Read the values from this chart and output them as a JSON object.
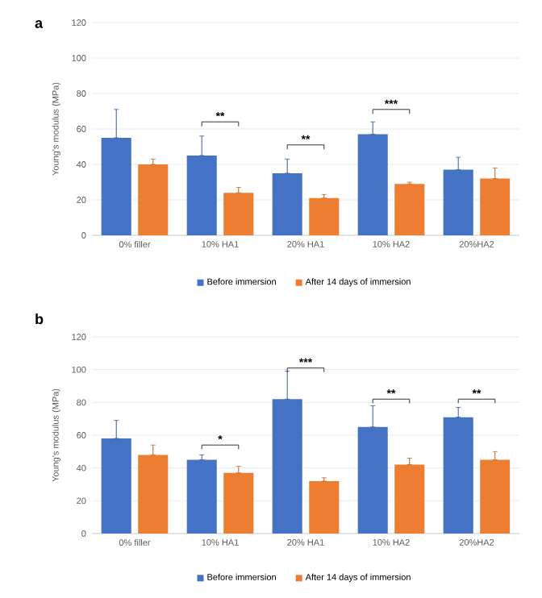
{
  "chart_data": [
    {
      "type": "bar",
      "title": "a",
      "ylabel": "Young's modulus (MPa)",
      "categories": [
        "0% filler",
        "10% HA1",
        "20% HA1",
        "10% HA2",
        "20%HA2"
      ],
      "series": [
        {
          "name": "Before immersion",
          "color": "#4472c4",
          "values": [
            55,
            45,
            35,
            57,
            37
          ],
          "errors": [
            [
              55,
              71
            ],
            [
              45,
              56
            ],
            [
              35,
              43
            ],
            [
              57,
              64
            ],
            [
              37,
              44
            ]
          ]
        },
        {
          "name": "After 14 days of immersion",
          "color": "#ed7d31",
          "values": [
            40,
            24,
            21,
            29,
            32
          ],
          "errors": [
            [
              40,
              43
            ],
            [
              24,
              27
            ],
            [
              21,
              23
            ],
            [
              29,
              30
            ],
            [
              32,
              38
            ]
          ]
        }
      ],
      "annotations": [
        "**",
        "**",
        "***"
      ],
      "ylim": [
        0,
        120
      ],
      "yticks": [
        0,
        20,
        40,
        60,
        80,
        100,
        120
      ],
      "grid": "y",
      "legend": "bottom"
    },
    {
      "type": "bar",
      "title": "b",
      "ylabel": "Young's modulus (MPa)",
      "categories": [
        "0% filler",
        "10% HA1",
        "20% HA1",
        "10% HA2",
        "20%HA2"
      ],
      "series": [
        {
          "name": "Before immersion",
          "color": "#4472c4",
          "values": [
            58,
            45,
            82,
            65,
            71
          ],
          "errors": [
            [
              58,
              69
            ],
            [
              45,
              48
            ],
            [
              82,
              99
            ],
            [
              65,
              78
            ],
            [
              71,
              77
            ]
          ]
        },
        {
          "name": "After 14 days of immersion",
          "color": "#ed7d31",
          "values": [
            48,
            37,
            32,
            42,
            45
          ],
          "errors": [
            [
              48,
              54
            ],
            [
              37,
              41
            ],
            [
              32,
              34
            ],
            [
              42,
              46
            ],
            [
              45,
              50
            ]
          ]
        }
      ],
      "annotations": [
        "*",
        "***",
        "**",
        "**"
      ],
      "ylim": [
        0,
        120
      ],
      "yticks": [
        0,
        20,
        40,
        60,
        80,
        100,
        120
      ],
      "grid": "y",
      "legend": "bottom"
    }
  ]
}
